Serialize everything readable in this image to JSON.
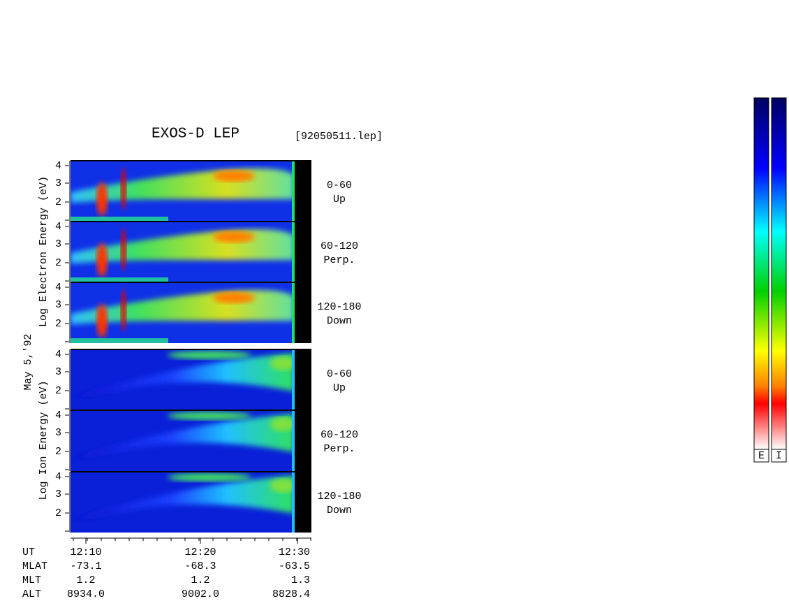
{
  "title": "EXOS-D LEP",
  "file": "[92050511.lep]",
  "date": "May 5,'92",
  "electron_axis_label": "Log Electron Energy (eV)",
  "ion_axis_label": "Log Ion Energy (eV)",
  "energy_ticks": [
    "4",
    "3",
    "2"
  ],
  "panels": [
    {
      "angle": "0-60",
      "direction": "Up"
    },
    {
      "angle": "60-120",
      "direction": "Perp."
    },
    {
      "angle": "120-180",
      "direction": "Down"
    }
  ],
  "time_axis": {
    "row_labels": [
      "UT",
      "MLAT",
      "MLT",
      "ALT"
    ],
    "columns": [
      [
        "12:10",
        "-73.1",
        "1.2",
        "8934.0"
      ],
      [
        "12:20",
        "-68.3",
        "1.2",
        "9002.0"
      ],
      [
        "12:30",
        "-63.5",
        "1.3",
        "8828.4"
      ]
    ]
  },
  "colorbars": [
    "E",
    "I"
  ]
}
